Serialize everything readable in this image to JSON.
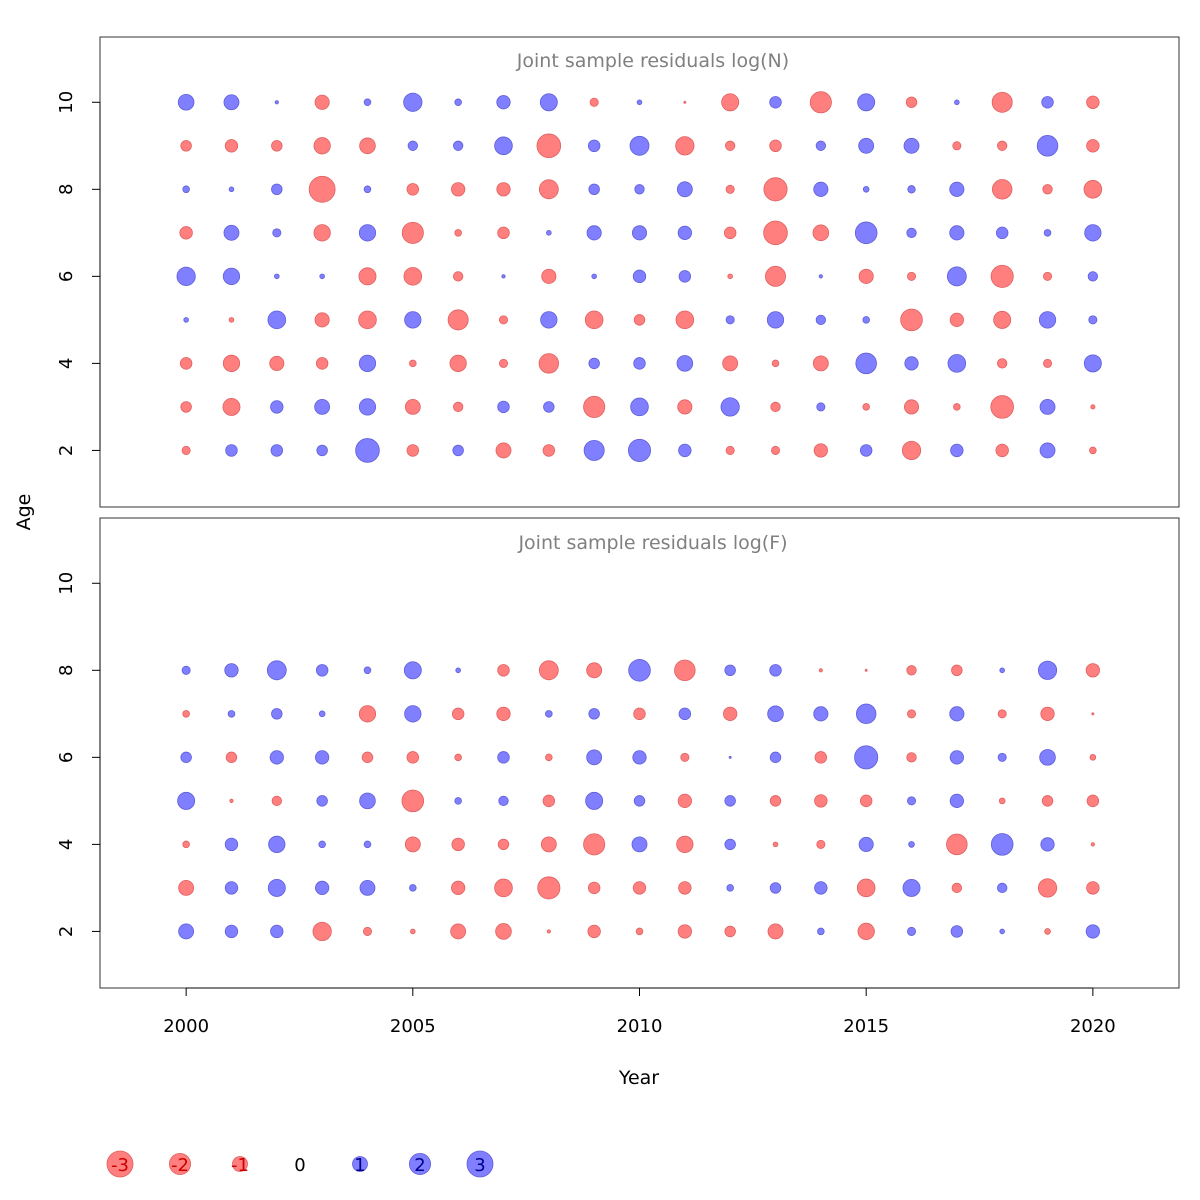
{
  "colors": {
    "negative": "#ff7f7f",
    "negative_stroke": "#e06060",
    "positive": "#7f7fff",
    "positive_stroke": "#5f5fd8",
    "title_gray": "#808080",
    "legend_neg_text": "#cc0000",
    "legend_pos_text": "#00008b"
  },
  "chart_data": [
    {
      "type": "bubble",
      "title": "Joint sample residuals log(N)",
      "xlabel": "Year",
      "ylabel": "Age",
      "xlim": [
        1998.1,
        2021.9
      ],
      "ylim": [
        0.7,
        11.5
      ],
      "y_ticks": [
        2,
        4,
        6,
        8,
        10
      ],
      "x_ticks": [],
      "grid": false,
      "years": [
        2000,
        2001,
        2002,
        2003,
        2004,
        2005,
        2006,
        2007,
        2008,
        2009,
        2010,
        2011,
        2012,
        2013,
        2014,
        2015,
        2016,
        2017,
        2018,
        2019,
        2020
      ],
      "ages": [
        2,
        3,
        4,
        5,
        6,
        7,
        8,
        9,
        10
      ],
      "residuals": [
        [
          -0.3,
          -0.5,
          -0.6,
          0.1,
          1.5,
          -0.7,
          0.2,
          -0.5,
          1.1
        ],
        [
          0.6,
          -1.3,
          -1.2,
          -0.1,
          1.2,
          1.0,
          0.1,
          -0.7,
          1.0
        ],
        [
          0.6,
          0.7,
          -0.9,
          1.4,
          0.1,
          0.3,
          0.5,
          -0.5,
          0.05
        ],
        [
          0.5,
          1.0,
          -0.6,
          -0.9,
          0.1,
          -1.2,
          -3.0,
          -1.2,
          -0.9
        ],
        [
          2.5,
          1.2,
          1.2,
          -1.4,
          -1.3,
          1.2,
          0.2,
          -1.1,
          0.2
        ],
        [
          -0.6,
          -1.0,
          -0.2,
          1.2,
          -1.4,
          -2.0,
          -0.6,
          0.4,
          1.5
        ],
        [
          0.5,
          -0.4,
          -1.2,
          -1.8,
          -0.4,
          -0.2,
          -0.8,
          0.4,
          0.2
        ],
        [
          -1.0,
          0.6,
          -0.3,
          -0.3,
          0.05,
          -0.6,
          -0.8,
          1.4,
          0.8
        ],
        [
          -0.6,
          0.5,
          -1.7,
          1.2,
          -0.9,
          0.1,
          -1.6,
          -2.5,
          1.3
        ],
        [
          1.8,
          -2.0,
          0.5,
          -1.4,
          0.1,
          0.9,
          0.5,
          0.6,
          -0.3
        ],
        [
          2.2,
          1.4,
          0.6,
          -0.5,
          0.7,
          0.9,
          0.4,
          1.6,
          0.1
        ],
        [
          0.7,
          -0.9,
          1.1,
          -1.4,
          0.6,
          0.8,
          1.0,
          -1.5,
          -0.02
        ],
        [
          -0.3,
          1.5,
          -1.0,
          0.3,
          -0.1,
          -0.6,
          -0.3,
          -0.4,
          -1.3
        ],
        [
          -0.3,
          -0.4,
          -0.2,
          1.2,
          -1.8,
          -2.5,
          -2.4,
          -0.6,
          0.6
        ],
        [
          -0.8,
          0.3,
          -1.0,
          0.4,
          0.05,
          -1.1,
          0.9,
          0.4,
          -2.0
        ],
        [
          0.6,
          -0.2,
          1.9,
          0.2,
          -0.9,
          2.1,
          0.15,
          1.0,
          1.3
        ],
        [
          -1.5,
          -0.9,
          0.8,
          -2.1,
          -0.3,
          0.4,
          0.25,
          1.0,
          -0.5
        ],
        [
          0.7,
          -0.2,
          1.4,
          -0.8,
          1.6,
          0.9,
          0.9,
          -0.3,
          0.1
        ],
        [
          -0.7,
          -2.3,
          -0.4,
          -1.3,
          -2.2,
          0.6,
          -1.7,
          -0.4,
          -1.8
        ],
        [
          1.0,
          1.0,
          -0.3,
          1.2,
          -0.3,
          0.2,
          -0.4,
          1.9,
          0.6
        ],
        [
          -0.2,
          -0.08,
          1.3,
          0.3,
          0.4,
          1.2,
          -1.4,
          -0.7,
          -0.7
        ]
      ]
    },
    {
      "type": "bubble",
      "title": "Joint sample residuals log(F)",
      "xlabel": "Year",
      "ylabel": "Age",
      "xlim": [
        1998.1,
        2021.9
      ],
      "ylim": [
        0.7,
        11.5
      ],
      "y_ticks": [
        2,
        4,
        6,
        8,
        10
      ],
      "x_ticks": [
        2000,
        2005,
        2010,
        2015,
        2020
      ],
      "grid": false,
      "years": [
        2000,
        2001,
        2002,
        2003,
        2004,
        2005,
        2006,
        2007,
        2008,
        2009,
        2010,
        2011,
        2012,
        2013,
        2014,
        2015,
        2016,
        2017,
        2018,
        2019,
        2020
      ],
      "ages": [
        2,
        3,
        4,
        5,
        6,
        7,
        8
      ],
      "residuals": [
        [
          1.0,
          -1.0,
          -0.2,
          1.3,
          0.5,
          -0.2,
          0.3
        ],
        [
          0.7,
          0.7,
          0.7,
          -0.05,
          -0.5,
          0.2,
          0.8
        ],
        [
          0.7,
          1.3,
          1.2,
          -0.4,
          0.8,
          0.5,
          1.6
        ],
        [
          -1.5,
          0.8,
          0.2,
          0.5,
          0.8,
          0.15,
          0.6
        ],
        [
          -0.3,
          1.0,
          0.2,
          1.1,
          -0.5,
          -1.2,
          0.2
        ],
        [
          -0.1,
          0.2,
          -1.0,
          -2.1,
          -0.6,
          1.2,
          1.3
        ],
        [
          -1.0,
          -0.8,
          -0.7,
          0.2,
          -0.2,
          -0.6,
          0.1
        ],
        [
          -1.1,
          -1.4,
          -0.5,
          0.4,
          0.6,
          -0.8,
          -0.6
        ],
        [
          -0.05,
          -2.2,
          -1.0,
          -0.6,
          -0.2,
          0.2,
          -1.6
        ],
        [
          -0.7,
          -0.6,
          -2.0,
          1.3,
          1.0,
          0.5,
          -1.0
        ],
        [
          -0.2,
          -0.7,
          1.0,
          0.5,
          0.8,
          -0.6,
          2.1
        ],
        [
          -0.8,
          -0.7,
          -1.2,
          -0.8,
          -0.3,
          0.6,
          -1.9
        ],
        [
          -0.5,
          0.2,
          0.5,
          0.5,
          0.02,
          -0.8,
          0.5
        ],
        [
          -1.0,
          0.5,
          -0.1,
          -0.5,
          0.5,
          1.1,
          0.6
        ],
        [
          0.2,
          0.7,
          -0.3,
          -0.7,
          -0.6,
          0.9,
          -0.05
        ],
        [
          -1.2,
          -1.4,
          0.9,
          -0.6,
          2.4,
          1.7,
          -0.02
        ],
        [
          0.3,
          1.3,
          0.15,
          0.3,
          -0.4,
          -0.3,
          -0.4
        ],
        [
          0.6,
          -0.4,
          -1.9,
          0.8,
          0.8,
          0.9,
          -0.5
        ],
        [
          0.1,
          0.4,
          2.1,
          -0.15,
          0.3,
          -0.3,
          0.1
        ],
        [
          -0.15,
          -1.5,
          0.8,
          -0.5,
          1.1,
          -0.8,
          1.5
        ],
        [
          0.8,
          -0.7,
          -0.05,
          -0.6,
          -0.15,
          -0.02,
          -0.8
        ]
      ]
    }
  ],
  "legend": {
    "entries": [
      {
        "label": "-3",
        "value": -3
      },
      {
        "label": "-2",
        "value": -2
      },
      {
        "label": "-1",
        "value": -1
      },
      {
        "label": "0",
        "value": 0
      },
      {
        "label": "1",
        "value": 1
      },
      {
        "label": "2",
        "value": 2
      },
      {
        "label": "3",
        "value": 3
      }
    ]
  },
  "axes": {
    "xlabel": "Year",
    "ylabel": "Age"
  }
}
